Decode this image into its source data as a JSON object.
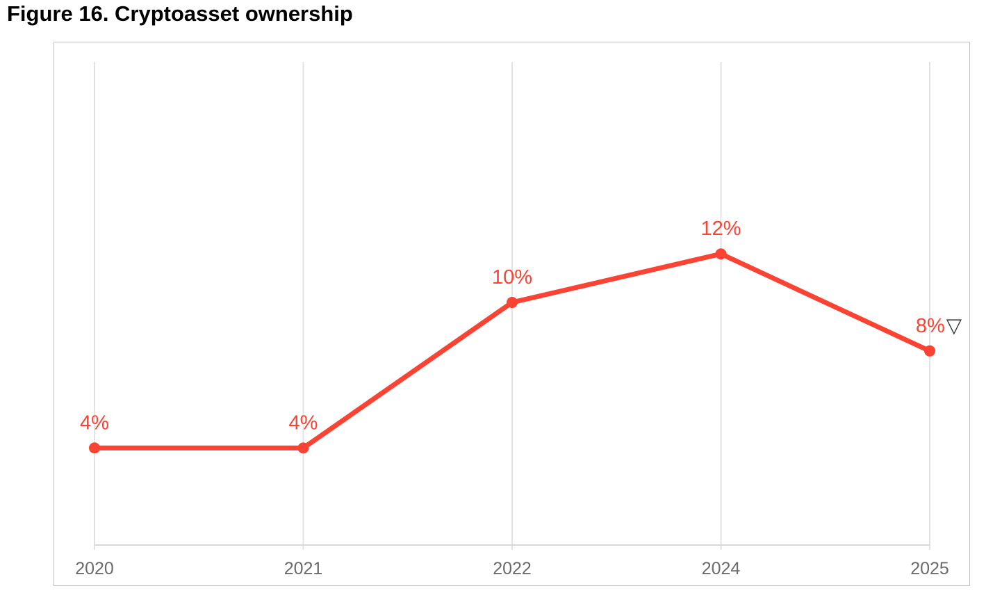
{
  "title": "Figure 16. Cryptoasset ownership",
  "chart_data": {
    "type": "line",
    "title": "Figure 16. Cryptoasset ownership",
    "categories": [
      "2020",
      "2021",
      "2022",
      "2024",
      "2025"
    ],
    "series": [
      {
        "name": "Cryptoasset ownership",
        "values": [
          4,
          4,
          10,
          12,
          8
        ]
      }
    ],
    "point_labels": [
      "4%",
      "4%",
      "10%",
      "12%",
      "8%"
    ],
    "last_point_marker": "▽",
    "xlabel": "",
    "ylabel": "",
    "ylim": [
      0,
      20
    ],
    "grid": "vertical-only",
    "legend": "none",
    "colors": {
      "line": "#fa4333",
      "point": "#fa4333",
      "data_label": "#fa4333",
      "marker": "#3c3c3c",
      "gridline": "#e3e3e3",
      "axis": "#d8d8d8",
      "tick_label": "#6b6b6b",
      "frame_border": "#c2c2c2",
      "title": "#000000",
      "background": "#ffffff"
    }
  }
}
